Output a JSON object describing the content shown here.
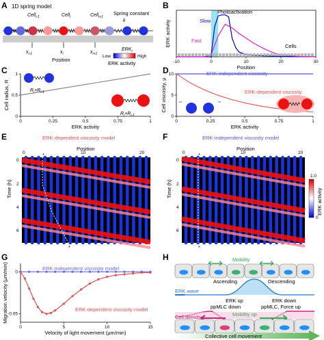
{
  "panels": {
    "A": {
      "letter": "A",
      "title": "1D spring model",
      "cells": [
        "Cell",
        "Cell",
        "Cell"
      ],
      "cell_subs": [
        "i-1",
        "i",
        "i+1"
      ],
      "positions": [
        "x",
        "x",
        "x"
      ],
      "pos_subs": [
        "i-1",
        "i",
        "i+1"
      ],
      "position_label": "Position",
      "spring_constant": "Spring constant",
      "k": "k",
      "erk_label": "ERK",
      "erk_sub": "i",
      "low": "Low",
      "high": "High",
      "erk_activity": "ERK activity"
    },
    "B": {
      "letter": "B",
      "annotation": "Photoactivation",
      "slow": "Slow",
      "fast": "Fast",
      "cells": "Cells"
    },
    "C": {
      "letter": "C",
      "radius_formula_a": "R",
      "radius_formula_op": "+R",
      "subs_a": [
        "i",
        "i-1"
      ],
      "subs_b": [
        "i",
        "i-1"
      ]
    },
    "D": {
      "letter": "D",
      "independent": "ERK-independent viscosity",
      "dependent": "ERK-dependent viscosity"
    },
    "E": {
      "letter": "E",
      "title": "ERK-dependent viscosity model",
      "xlabel": "Position",
      "ylabel": "Time (h)",
      "xticks": [
        "0",
        "10",
        "20"
      ],
      "yticks": [
        "0",
        "2",
        "4",
        "6"
      ],
      "markers": [
        "*",
        "*"
      ]
    },
    "F": {
      "letter": "F",
      "title": "ERK-independent viscosity model",
      "xlabel": "Position",
      "ylabel": "Time (h)",
      "xticks": [
        "0",
        "10",
        "20"
      ],
      "yticks": [
        "0",
        "2",
        "4",
        "6"
      ],
      "markers": [
        "*",
        "*"
      ],
      "cbar_ticks": [
        "1.0",
        "0"
      ],
      "cbar_label": "ERK activity"
    },
    "G": {
      "letter": "G",
      "independent": "ERK-independent viscosity model",
      "dependent": "ERK-dependent viscosity model"
    },
    "H": {
      "letter": "H",
      "mobility": "Mobility",
      "ascending": "Ascending",
      "descending": "Descending",
      "erk_wave": "ERK wave",
      "erk_up": "ERK up",
      "erk_down": "ERK down",
      "ppmlc_down": "ppMLC down",
      "ppmlc_force_up": "ppMLC, Force up",
      "mobility_up": "Mobility up",
      "cell_density": "Cell density",
      "collective": "Collective cell movement"
    }
  },
  "chart_data": [
    {
      "panel": "B",
      "type": "line",
      "title": "",
      "xlabel": "Position",
      "ylabel": "ERK activity",
      "xlim": [
        -10,
        30
      ],
      "xticks": [
        -10,
        0,
        10,
        20,
        30
      ],
      "highlight_band": [
        0,
        2
      ],
      "series": [
        {
          "name": "Slow",
          "color": "#0000cc",
          "x": [
            -10,
            0,
            0,
            1,
            2,
            3,
            4,
            5,
            6,
            7,
            8,
            10,
            12,
            15,
            20,
            30
          ],
          "y": [
            0.0,
            0.0,
            0.05,
            0.65,
            0.88,
            0.9,
            0.9,
            0.86,
            0.4,
            0.2,
            0.1,
            0.05,
            0.03,
            0.02,
            0.01,
            0.0
          ]
        },
        {
          "name": "Fast",
          "color": "#e020c0",
          "x": [
            -10,
            -2,
            0,
            2,
            4,
            6,
            8,
            10,
            12,
            15,
            18,
            20,
            25,
            30
          ],
          "y": [
            0.0,
            0.0,
            0.05,
            0.45,
            0.7,
            0.62,
            0.5,
            0.4,
            0.3,
            0.18,
            0.08,
            0.04,
            0.01,
            0.0
          ]
        }
      ]
    },
    {
      "panel": "C",
      "type": "line",
      "xlabel": "ERK activity",
      "ylabel": "Cell radius, R",
      "xlim": [
        0,
        1
      ],
      "ylim": [
        0,
        1
      ],
      "xticks": [
        0,
        0.25,
        0.5,
        0.75,
        1
      ],
      "yticks": [
        0,
        0.5,
        1
      ],
      "series": [
        {
          "name": "",
          "color": "#888888",
          "x": [
            0,
            1
          ],
          "y": [
            0.5,
            1.0
          ]
        }
      ]
    },
    {
      "panel": "D",
      "type": "line",
      "xlabel": "ERK activity",
      "ylabel": "Cell viscosity, μ",
      "xlim": [
        0,
        1
      ],
      "ylim": [
        0,
        10
      ],
      "xticks": [
        0,
        0.25,
        0.5,
        0.75,
        1
      ],
      "yticks": [
        0,
        5,
        10
      ],
      "series": [
        {
          "name": "ERK-independent viscosity",
          "color": "#5555dd",
          "x": [
            0,
            1
          ],
          "y": [
            10,
            10
          ]
        },
        {
          "name": "ERK-dependent viscosity",
          "color": "#e06060",
          "x": [
            0,
            0.1,
            0.2,
            0.3,
            0.4,
            0.5,
            0.6,
            0.7,
            0.8,
            0.9,
            1.0
          ],
          "y": [
            10,
            7.9,
            6.3,
            5.0,
            3.98,
            3.16,
            2.5,
            2.0,
            1.58,
            1.26,
            1.0
          ]
        }
      ]
    },
    {
      "panel": "G",
      "type": "line",
      "xlabel": "Velocity of light movement (μm/min)",
      "ylabel": "Migration velocity (μm/min)",
      "xlim": [
        0,
        15
      ],
      "ylim": [
        -0.06,
        0.01
      ],
      "xticks": [
        0,
        5,
        10,
        15
      ],
      "yticks": [
        0,
        -0.05
      ],
      "series": [
        {
          "name": "ERK-independent viscosity model",
          "color": "#6666ee",
          "x": [
            0,
            1,
            2,
            3,
            4,
            5,
            6,
            7,
            8,
            9,
            10,
            11,
            12,
            13,
            14,
            15
          ],
          "y": [
            0,
            0,
            0,
            0,
            0,
            0,
            0,
            0,
            0,
            0,
            0,
            0,
            0,
            0,
            0,
            0
          ]
        },
        {
          "name": "ERK-dependent viscosity model",
          "color": "#e05050",
          "x": [
            0,
            0.5,
            1,
            1.5,
            2,
            2.5,
            3,
            3.5,
            4,
            5,
            6,
            7,
            8,
            9,
            10,
            11,
            12,
            13,
            14,
            15
          ],
          "y": [
            0,
            -0.008,
            -0.02,
            -0.032,
            -0.042,
            -0.048,
            -0.05,
            -0.049,
            -0.046,
            -0.038,
            -0.029,
            -0.021,
            -0.014,
            -0.009,
            -0.006,
            -0.004,
            -0.003,
            -0.002,
            -0.001,
            -0.001
          ]
        }
      ]
    }
  ]
}
